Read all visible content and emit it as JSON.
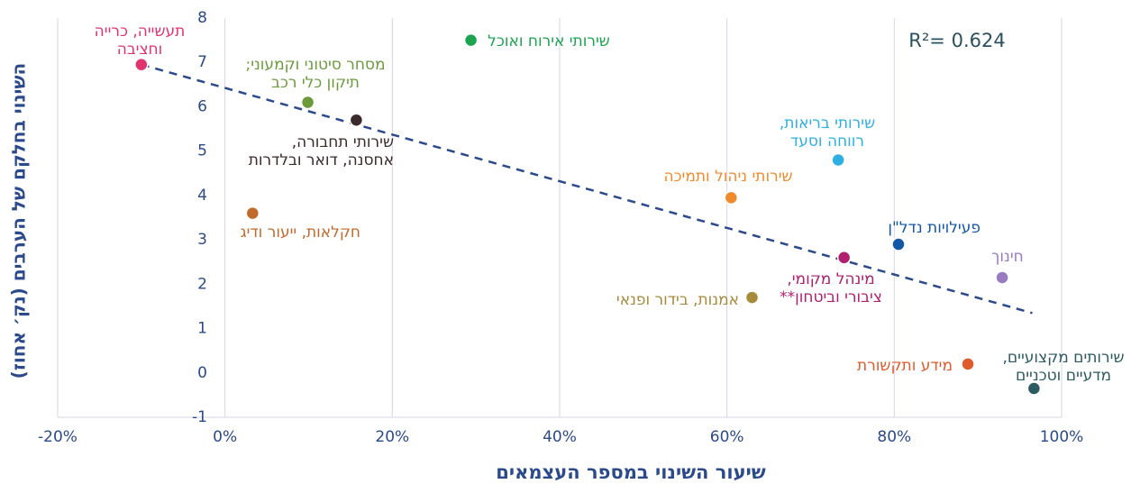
{
  "chart_data": {
    "type": "scatter",
    "xlabel": "שיעור השינוי במספר העצמאים",
    "ylabel": "השינוי בחלקם של הערבים (נק׳ אחוז)",
    "annotation": "R²= 0.624",
    "xlim": [
      -20,
      100
    ],
    "xticks": [
      {
        "value": -20,
        "label": "-20%"
      },
      {
        "value": 0,
        "label": "0%"
      },
      {
        "value": 20,
        "label": "20%"
      },
      {
        "value": 40,
        "label": "40%"
      },
      {
        "value": 60,
        "label": "60%"
      },
      {
        "value": 80,
        "label": "80%"
      },
      {
        "value": 100,
        "label": "100%"
      }
    ],
    "ylim": [
      -1,
      8
    ],
    "yticks": [
      -1,
      0,
      1,
      2,
      3,
      4,
      5,
      6,
      7,
      8
    ],
    "grid": true,
    "trendline": {
      "color": "#2b4a8c",
      "x": [
        -10,
        96.5
      ],
      "y": [
        6.95,
        1.35
      ]
    },
    "series": [
      {
        "name": [
          "תעשייה, כרייה",
          "וחציבה"
        ],
        "color": "#e3336c",
        "x": [
          -10
        ],
        "values": [
          6.95
        ]
      },
      {
        "name": [
          "שירותי אירוח ואוכל"
        ],
        "color": "#1ba34f",
        "x": [
          29.4
        ],
        "values": [
          7.5
        ]
      },
      {
        "name": [
          "מסחר סיטוני וקמעוני;",
          "תיקון כלי רכב"
        ],
        "color": "#6b9a3b",
        "x": [
          9.9
        ],
        "values": [
          6.1
        ]
      },
      {
        "name": [
          "שירותי תחבורה,",
          "אחסנה, דואר ובלדרות"
        ],
        "color": "#3b2a2a",
        "x": [
          15.7
        ],
        "values": [
          5.7
        ]
      },
      {
        "name": [
          "חקלאות, ייעור ודיג"
        ],
        "color": "#c06a2b",
        "x": [
          3.3
        ],
        "values": [
          3.6
        ]
      },
      {
        "name": [
          "שירותי בריאות,",
          "רווחה וסעד"
        ],
        "color": "#2cafe2",
        "x": [
          73.3
        ],
        "values": [
          4.8
        ]
      },
      {
        "name": [
          "שירותי ניהול ותמיכה"
        ],
        "color": "#f08a2b",
        "x": [
          60.5
        ],
        "values": [
          3.95
        ]
      },
      {
        "name": [
          "פעילויות נדל\"ן"
        ],
        "color": "#1257a8",
        "x": [
          80.5
        ],
        "values": [
          2.9
        ]
      },
      {
        "name": [
          "מינהל מקומי,",
          "ציבורי וביטחון**"
        ],
        "color": "#b0206f",
        "x": [
          74
        ],
        "values": [
          2.6
        ]
      },
      {
        "name": [
          "חינוך"
        ],
        "color": "#9a7bc0",
        "x": [
          92.9
        ],
        "values": [
          2.15
        ]
      },
      {
        "name": [
          "אמנות, בידור ופנאי"
        ],
        "color": "#a88a3b",
        "x": [
          63
        ],
        "values": [
          1.7
        ]
      },
      {
        "name": [
          "מידע ותקשורת"
        ],
        "color": "#e05a2b",
        "x": [
          88.8
        ],
        "values": [
          0.2
        ]
      },
      {
        "name": [
          "שירותים מקצועיים,",
          "מדעיים וטכניים"
        ],
        "color": "#2b5a61",
        "x": [
          96.7
        ],
        "values": [
          -0.35
        ]
      }
    ]
  }
}
